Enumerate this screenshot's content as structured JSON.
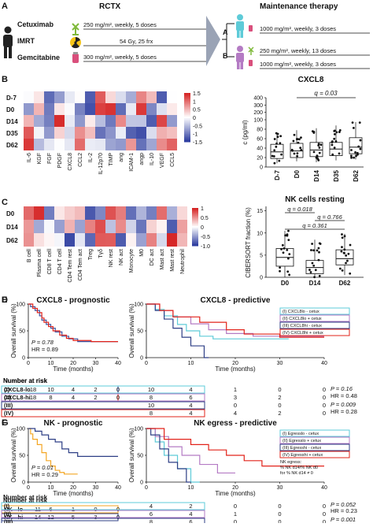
{
  "panelA": {
    "letter": "A",
    "header_left": "RCTX",
    "header_right": "Maintenance therapy",
    "drugs": [
      "Cetuximab",
      "IMRT",
      "Gemcitabine"
    ],
    "doses": [
      "250 mg/m², weekly, 5 doses",
      "54 Gy, 25 frx",
      "300 mg/m², weekly, 5 doses"
    ],
    "armA": {
      "label": "A",
      "dose": "1000 mg/m², weekly, 3 doses"
    },
    "armB": {
      "label": "B",
      "dose1": "250 mg/m², weekly, 13 doses",
      "dose2": "1000 mg/m², weekly, 3 doses"
    }
  },
  "panelB": {
    "letter": "B",
    "rows": [
      "D-7",
      "D0",
      "D14",
      "D35",
      "D62"
    ],
    "cols": [
      "IL-6",
      "KGF",
      "FGF",
      "PDGF",
      "CXCL8",
      "CCL2",
      "IL-2",
      "IL-12p70",
      "TIMP",
      "ang",
      "ICAM-1",
      "angp",
      "IL-10",
      "VEGF",
      "CCL5"
    ],
    "scale": [
      "1.5",
      "1",
      "0.5",
      "0",
      "-0.5",
      "-1",
      "-1.5"
    ],
    "box_title": "CXCL8",
    "ylabel": "c (pg/ml)",
    "yticks": [
      "0",
      "20",
      "40",
      "60",
      "80",
      "100",
      "200",
      "300",
      "400"
    ],
    "xcats": [
      "D-7",
      "D0",
      "D14",
      "D35",
      "D62"
    ],
    "qlabel": "q = 0.03"
  },
  "panelC": {
    "letter": "C",
    "rows": [
      "D0",
      "D14",
      "D62"
    ],
    "cols": [
      "B cell",
      "Plasma cell",
      "CD8 T cell",
      "CD4 T cell",
      "CD4 Tem rest",
      "CD4 Tem act",
      "Treg",
      "Tγδ",
      "NK rest",
      "NK act",
      "Monocyte",
      "M0",
      "DC act",
      "Mast act",
      "Mast rest",
      "Neutrophil"
    ],
    "scale": [
      "1",
      "0.5",
      "0",
      "-0.5",
      "-1.0"
    ],
    "box_title": "NK cells resting",
    "ylabel": "CIBERSORT fraction (%)",
    "yticks": [
      "0",
      "5",
      "10",
      "15"
    ],
    "xcats": [
      "D0",
      "D14",
      "D62"
    ],
    "q1": "q = 0.018",
    "q2": "q = 0.766",
    "q3": "q = 0.361"
  },
  "panelD": {
    "letter": "D",
    "title": "CXCL8 - prognostic",
    "ylabel": "Overall survival (%)",
    "xlabel": "Time (months)",
    "yticks": [
      "0",
      "50",
      "100"
    ],
    "xticks": [
      "0",
      "10",
      "20",
      "30",
      "40"
    ],
    "p": "P = 0.78",
    "hr": "HR = 0.89",
    "risk_title": "Number at risk",
    "risk": [
      {
        "label": "CXCL8-lo",
        "n": "18",
        "vals": [
          "10",
          "4",
          "2",
          "0"
        ]
      },
      {
        "label": "CXCL8-hi",
        "n": "18",
        "vals": [
          "8",
          "4",
          "2",
          "0"
        ]
      }
    ]
  },
  "panelE": {
    "letter": "E",
    "title": "CXCL8 - predictive",
    "ylabel": "Overall survival (%)",
    "xlabel": "Time (months)",
    "yticks": [
      "0",
      "50",
      "100"
    ],
    "xticks": [
      "0",
      "10",
      "20",
      "30",
      "40"
    ],
    "legend": [
      "(I) CXCL8lo - cetux",
      "(II) CXCL8lo + cetux",
      "(III) CXCL8hi - cetux",
      "(IV) CXCL8hi + cetux"
    ],
    "risk_title": "Number at risk",
    "risk": [
      {
        "label": "(I)",
        "n": "10",
        "vals": [
          "4",
          "1",
          "0",
          "0"
        ]
      },
      {
        "label": "(II)",
        "n": "8",
        "vals": [
          "6",
          "3",
          "2",
          "0"
        ]
      },
      {
        "label": "(III)",
        "n": "10",
        "vals": [
          "4",
          "0",
          "0",
          "0"
        ]
      },
      {
        "label": "(IV)",
        "n": "8",
        "vals": [
          "4",
          "4",
          "2",
          "0"
        ]
      }
    ],
    "stats": [
      {
        "p": "P = 0.16",
        "hr": "HR = 0.48"
      },
      {
        "p": "P = 0.009",
        "hr": "HR = 0.28"
      }
    ]
  },
  "panelF": {
    "letter": "F",
    "title": "NK - prognostic",
    "ylabel": "Overall survival (%)",
    "xlabel": "Time (months)",
    "yticks": [
      "0",
      "50",
      "100"
    ],
    "xticks": [
      "0",
      "10",
      "20",
      "30",
      "40"
    ],
    "p": "P = 0.01",
    "hr": "HR = 0.29",
    "risk_title": "Number at risk",
    "risk": [
      {
        "label": "NK - lo",
        "n": "11",
        "vals": [
          "6",
          "1",
          "0",
          "0"
        ]
      },
      {
        "label": "NK - hi",
        "n": "14",
        "vals": [
          "12",
          "5",
          "3",
          "0"
        ]
      }
    ]
  },
  "panelG": {
    "letter": "G",
    "title": "NK egress - predictive",
    "ylabel": "Overall survival (%)",
    "xlabel": "Time (months)",
    "yticks": [
      "0",
      "50",
      "100"
    ],
    "xticks": [
      "0",
      "10",
      "20",
      "30",
      "40"
    ],
    "legend": [
      "(I) Egresslo - cetux",
      "(II) Egresslo + cetux",
      "(III) Egresshi - cetux",
      "(IV) Egresshi + cetux"
    ],
    "note": [
      "NK egress:",
      "% NK d14/% NK d0",
      "for % NK d14 ≠ 0"
    ],
    "risk_title": "Number at risk",
    "risk": [
      {
        "label": "(I)",
        "n": "4",
        "vals": [
          "2",
          "0",
          "0",
          "0"
        ]
      },
      {
        "label": "(II)",
        "n": "6",
        "vals": [
          "4",
          "1",
          "0",
          "0"
        ]
      },
      {
        "label": "(III)",
        "n": "8",
        "vals": [
          "6",
          "0",
          "0",
          "0"
        ]
      },
      {
        "label": "(IV)",
        "n": "5",
        "vals": [
          "5",
          "3",
          "3",
          "0"
        ]
      }
    ],
    "stats": [
      {
        "p": "P = 0.052",
        "hr": "HR = 0.23"
      },
      {
        "p": "P = 0.001",
        "hr": "HR = 0.19"
      }
    ]
  },
  "colors": {
    "red": "#e2231a",
    "blue": "#3a55a4",
    "cyan": "#5ecbd8",
    "purple": "#b47bc4",
    "orange": "#f4a623",
    "navy": "#2e3f86"
  }
}
